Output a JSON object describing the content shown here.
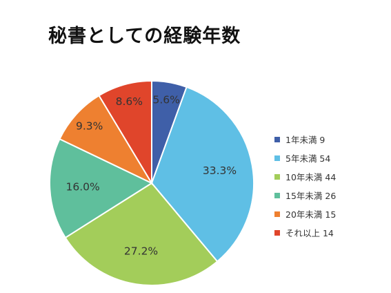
{
  "chart_data": {
    "type": "pie",
    "title": "秘書としての経験年数",
    "categories": [
      "1年未満",
      "5年未満",
      "10年未満",
      "15年未満",
      "20年未満",
      "それ以上"
    ],
    "values": [
      9,
      54,
      44,
      26,
      15,
      14
    ],
    "percent_labels": [
      "5.6%",
      "33.3%",
      "27.2%",
      "16.0%",
      "9.3%",
      "8.6%"
    ],
    "legend_entries": [
      "1年未満 9",
      "5年未満 54",
      "10年未満 44",
      "15年未満 26",
      "20年未満 15",
      "それ以上 14"
    ],
    "colors": [
      "#3f5fa8",
      "#5fbfe5",
      "#a3cd5a",
      "#5fbf9c",
      "#ee8030",
      "#e0452b"
    ],
    "start_angle_deg": 0,
    "direction": "clockwise",
    "legend_position": "right"
  }
}
